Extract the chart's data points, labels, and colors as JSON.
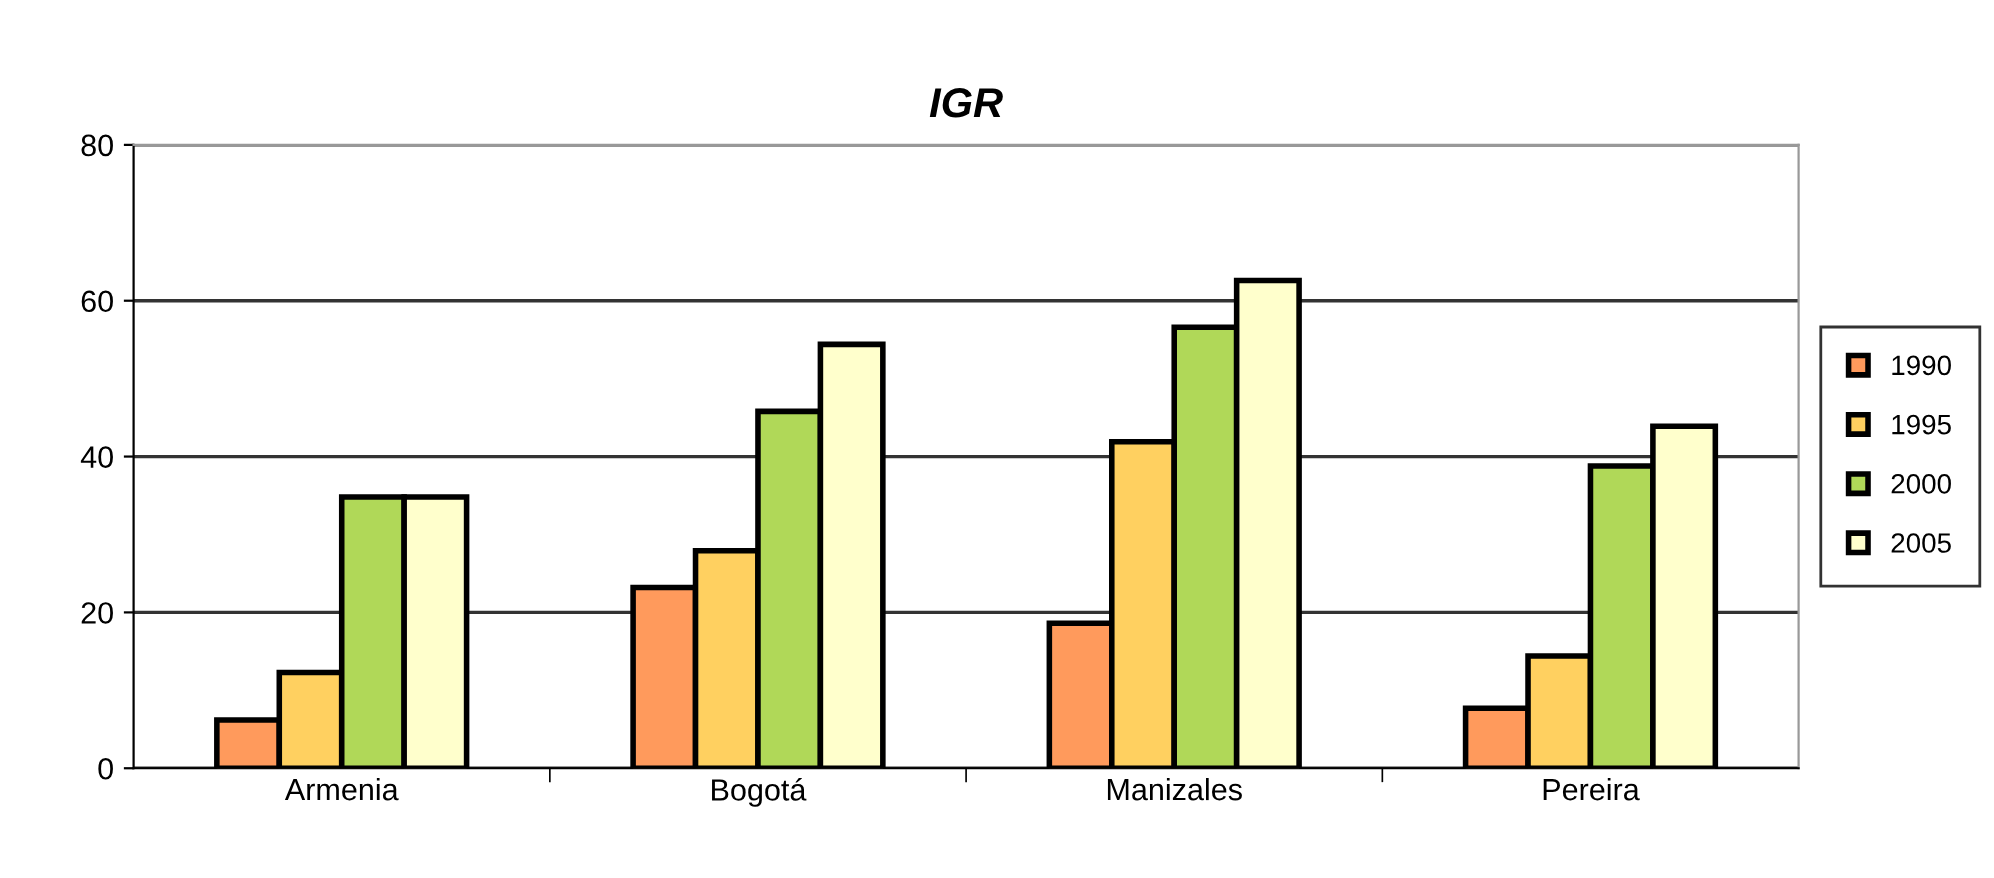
{
  "chart_data": {
    "type": "bar",
    "title": "IGR",
    "categories": [
      "Armenia",
      "Bogotá",
      "Manizales",
      "Pereira"
    ],
    "series": [
      {
        "name": "1990",
        "color": "#ff9a5c",
        "values": [
          6.2,
          23.2,
          18.6,
          7.7
        ]
      },
      {
        "name": "1995",
        "color": "#ffd060",
        "values": [
          12.3,
          27.9,
          41.9,
          14.4
        ]
      },
      {
        "name": "2000",
        "color": "#b0d858",
        "values": [
          34.8,
          45.8,
          56.6,
          38.8
        ]
      },
      {
        "name": "2005",
        "color": "#ffffcc",
        "values": [
          34.8,
          54.4,
          62.6,
          43.9
        ]
      }
    ],
    "ylim": [
      0,
      80
    ],
    "yticks": [
      0,
      20,
      40,
      60,
      80
    ],
    "grid": "y",
    "legend": "right"
  }
}
